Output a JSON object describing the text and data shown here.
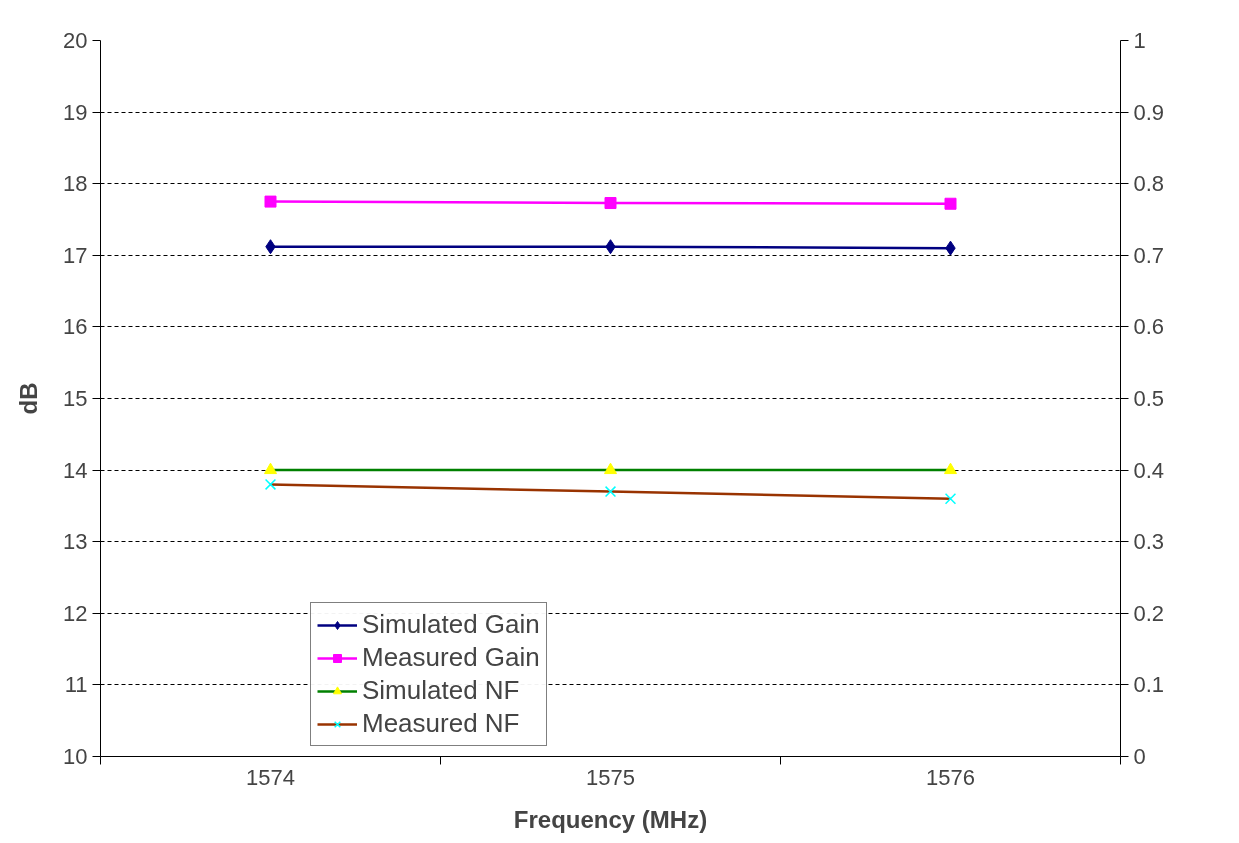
{
  "chart_data": {
    "type": "line",
    "xlabel": "Frequency (MHz)",
    "ylabel": "dB",
    "categories": [
      "1574",
      "1575",
      "1576"
    ],
    "series": [
      {
        "name": "Simulated Gain",
        "color": "#000080",
        "colors": [
          "#000080",
          "#000080",
          "#000080"
        ],
        "marker": "diamond",
        "values": [
          17.12,
          17.12,
          17.1
        ]
      },
      {
        "name": "Measured Gain",
        "color": "#ff00ff",
        "colors": [
          "#ff00ff",
          "#ff00ff",
          "#ff00ff"
        ],
        "marker": "square",
        "values": [
          17.75,
          17.73,
          17.72
        ]
      },
      {
        "name": "Simulated NF",
        "color": "#008000",
        "colors": [
          "#ffff00",
          "#ffff00",
          "#ffff00"
        ],
        "marker": "triangle",
        "values": [
          14.0,
          14.0,
          14.0
        ]
      },
      {
        "name": "Measured NF",
        "color": "#993300",
        "colors": [
          "#00ffff",
          "#00ffff",
          "#00ffff"
        ],
        "marker": "cross",
        "values": [
          13.8,
          13.7,
          13.6
        ]
      }
    ],
    "ylim": [
      10,
      20
    ],
    "yticks": [
      10,
      11,
      12,
      13,
      14,
      15,
      16,
      17,
      18,
      19,
      20
    ],
    "y2lim": [
      0,
      1
    ],
    "y2ticks": [
      0,
      0.1,
      0.2,
      0.3,
      0.4,
      0.5,
      0.6,
      0.7,
      0.8,
      0.9,
      1
    ],
    "grid": "y",
    "legend": "bottom"
  }
}
